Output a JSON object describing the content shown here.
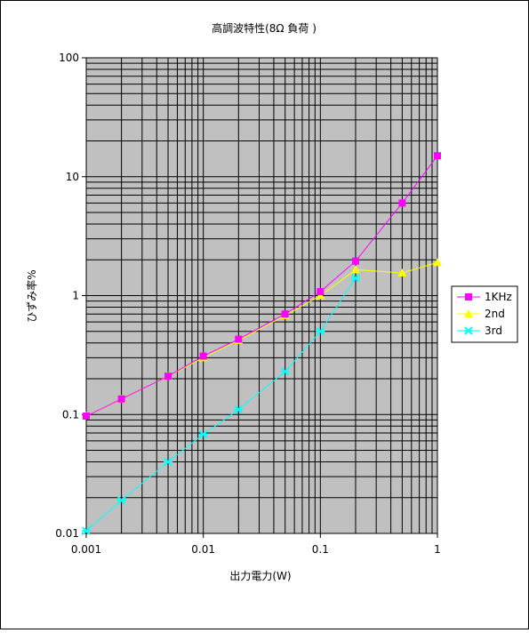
{
  "chart_data": {
    "type": "line",
    "title": "高調波特性(8Ω 負荷 )",
    "xlabel": "出力電力(W)",
    "ylabel": "ひずみ率%",
    "x_scale": "log",
    "y_scale": "log",
    "xlim": [
      0.001,
      1
    ],
    "ylim": [
      0.01,
      100
    ],
    "x_ticks": [
      "0.001",
      "0.01",
      "0.1",
      "1"
    ],
    "y_ticks": [
      "0.01",
      "0.1",
      "1",
      "10",
      "100"
    ],
    "grid": true,
    "legend_position": "right",
    "x": [
      0.001,
      0.002,
      0.005,
      0.01,
      0.02,
      0.05,
      0.1,
      0.2,
      0.5,
      1
    ],
    "series": [
      {
        "name": "1KHz",
        "color": "#ff00ff",
        "marker": "square",
        "values": [
          0.097,
          0.135,
          0.21,
          0.31,
          0.43,
          0.7,
          1.08,
          1.95,
          6.0,
          15
        ]
      },
      {
        "name": "2nd",
        "color": "#ffff00",
        "marker": "triangle",
        "values": [
          0.097,
          0.135,
          0.21,
          0.3,
          0.42,
          0.68,
          1.0,
          1.65,
          1.55,
          1.9
        ]
      },
      {
        "name": "3rd",
        "color": "#00ffff",
        "marker": "x-star",
        "values": [
          0.0105,
          0.019,
          0.04,
          0.068,
          0.11,
          0.23,
          0.5,
          1.4,
          null,
          null
        ]
      }
    ]
  }
}
